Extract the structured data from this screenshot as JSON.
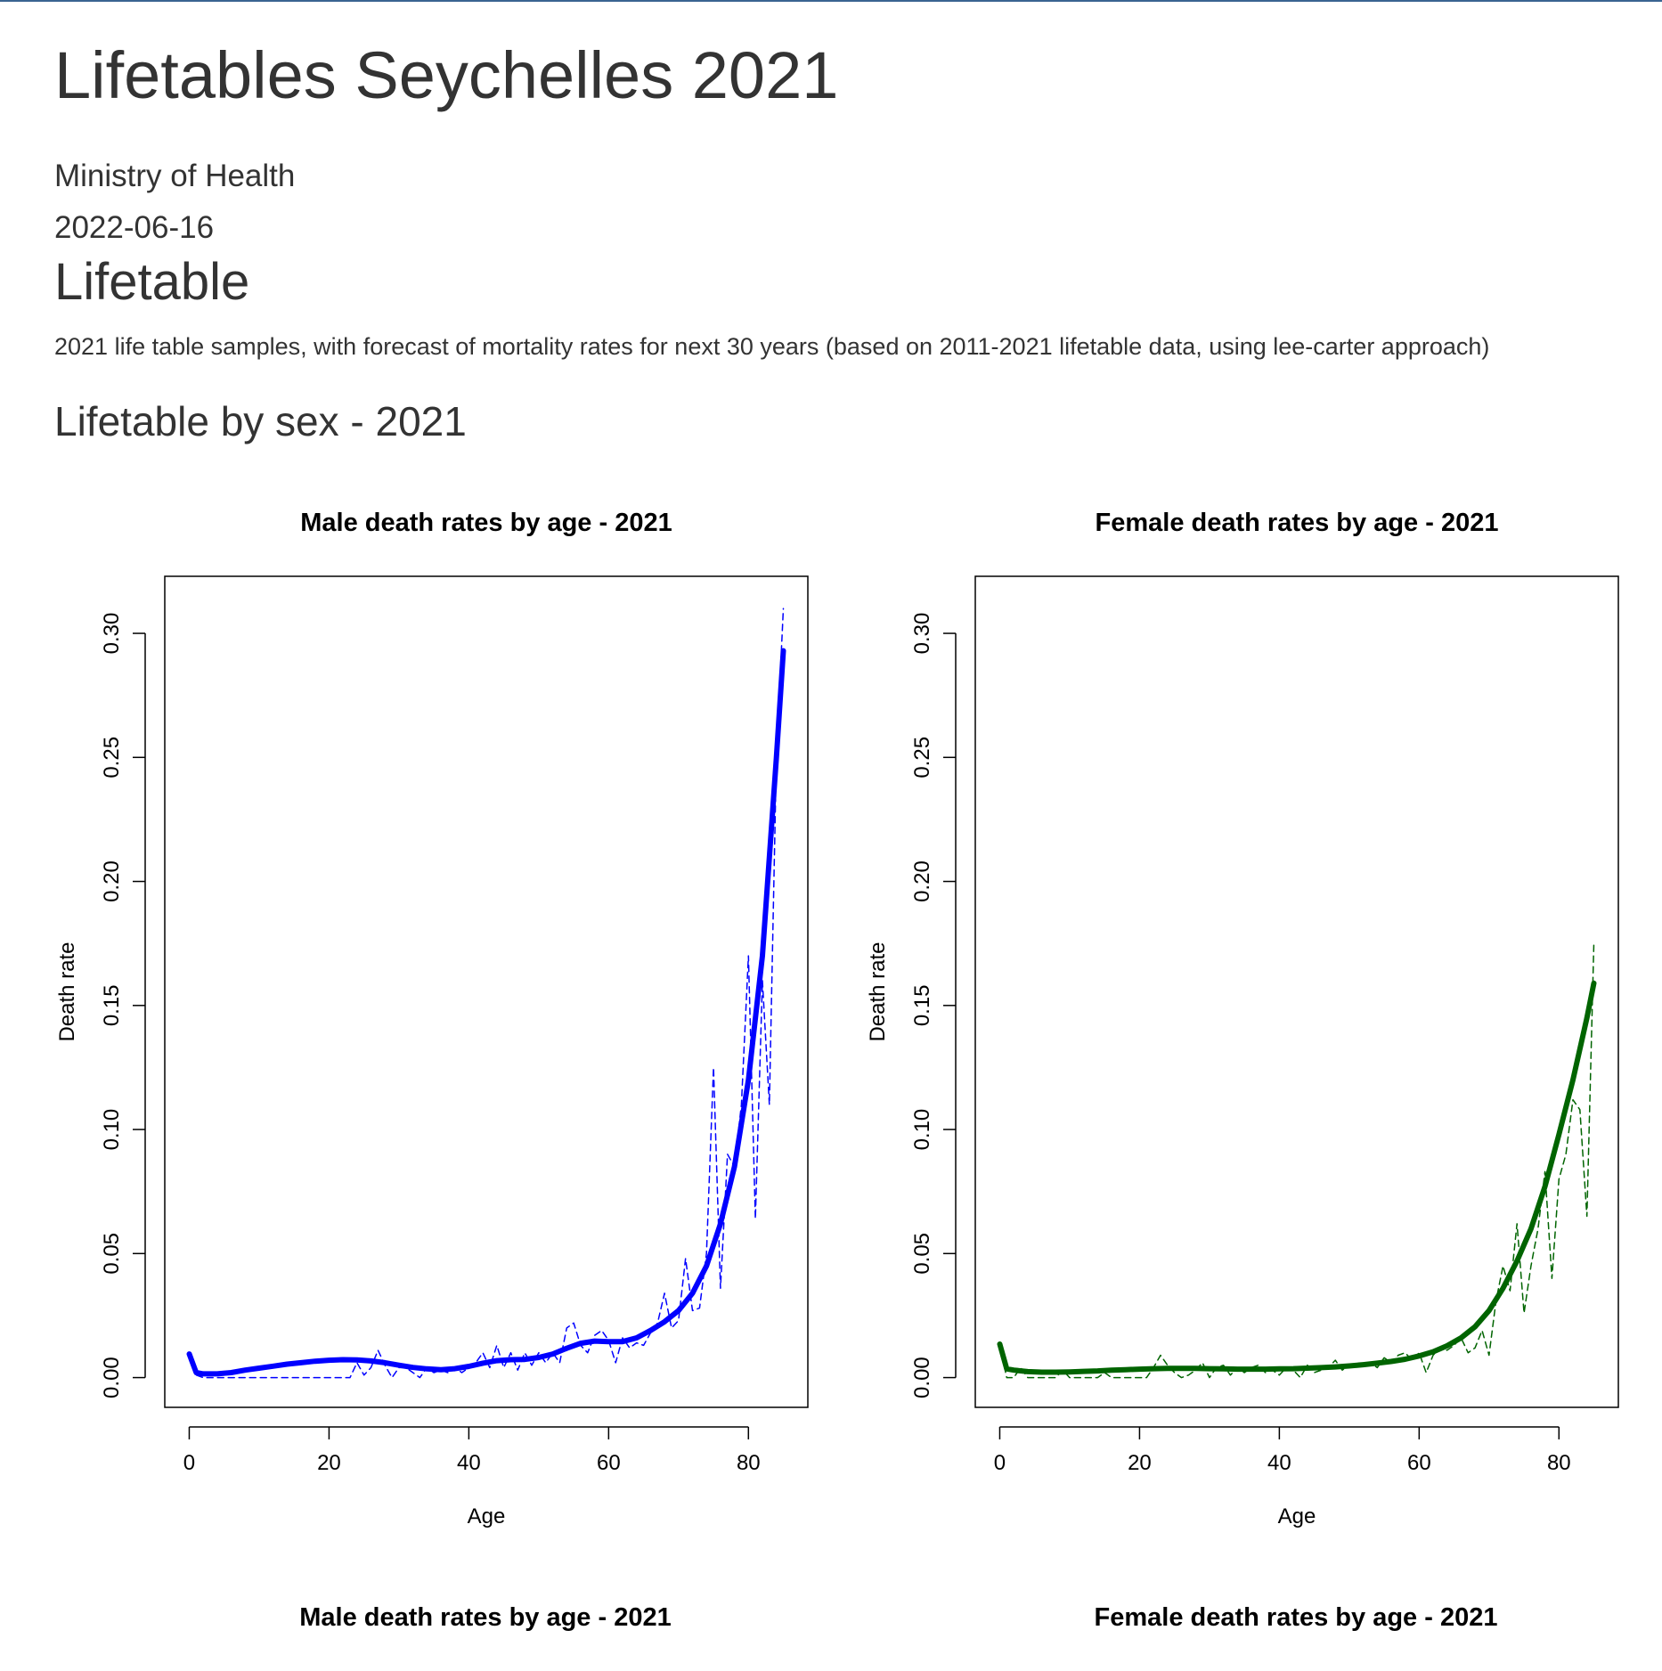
{
  "header": {
    "title": "Lifetables Seychelles 2021",
    "author": "Ministry of Health",
    "date": "2022-06-16"
  },
  "section": {
    "title": "Lifetable",
    "description": "2021 life table samples, with forecast of mortality rates for next 30 years (based on 2011-2021 lifetable data, using lee-carter approach)"
  },
  "subsection": {
    "title": "Lifetable by sex - 2021"
  },
  "colors": {
    "male": "#0000ff",
    "female": "#006400"
  },
  "second_row_titles": [
    "Male death rates by age - 2021",
    "Female death rates by age - 2021"
  ],
  "chart_data": [
    {
      "type": "line",
      "title": "Male death rates by age - 2021",
      "xlabel": "Age",
      "ylabel": "Death rate",
      "xlim": [
        -3.5,
        88.5
      ],
      "ylim": [
        -0.012,
        0.323
      ],
      "xticks": [
        "0",
        "20",
        "40",
        "60",
        "80"
      ],
      "yticks": [
        "0.00",
        "0.05",
        "0.10",
        "0.15",
        "0.20",
        "0.25",
        "0.30"
      ],
      "series": [
        {
          "style": "dashed",
          "x": [
            0,
            1,
            2,
            3,
            4,
            5,
            6,
            7,
            8,
            9,
            10,
            11,
            12,
            13,
            14,
            15,
            16,
            17,
            18,
            19,
            20,
            21,
            22,
            23,
            24,
            25,
            26,
            27,
            28,
            29,
            30,
            31,
            32,
            33,
            34,
            35,
            36,
            37,
            38,
            39,
            40,
            41,
            42,
            43,
            44,
            45,
            46,
            47,
            48,
            49,
            50,
            51,
            52,
            53,
            54,
            55,
            56,
            57,
            58,
            59,
            60,
            61,
            62,
            63,
            64,
            65,
            66,
            67,
            68,
            69,
            70,
            71,
            72,
            73,
            74,
            75,
            76,
            77,
            78,
            79,
            80,
            81,
            82,
            83,
            84,
            85
          ],
          "values": [
            0.009,
            0.001,
            0,
            0,
            0,
            0,
            0,
            0,
            0,
            0,
            0,
            0,
            0,
            0,
            0,
            0,
            0,
            0,
            0,
            0,
            0,
            0,
            0,
            0,
            0.006,
            0.001,
            0.004,
            0.011,
            0.005,
            0,
            0.004,
            0.004,
            0.002,
            0,
            0.004,
            0.002,
            0.003,
            0.002,
            0.004,
            0.002,
            0.004,
            0.006,
            0.01,
            0.004,
            0.013,
            0.004,
            0.01,
            0.003,
            0.01,
            0.005,
            0.01,
            0.006,
            0.01,
            0.006,
            0.02,
            0.022,
            0.013,
            0.01,
            0.017,
            0.019,
            0.015,
            0.006,
            0.016,
            0.012,
            0.014,
            0.013,
            0.018,
            0.022,
            0.034,
            0.02,
            0.023,
            0.048,
            0.027,
            0.028,
            0.05,
            0.125,
            0.036,
            0.09,
            0.085,
            0.11,
            0.17,
            0.064,
            0.16,
            0.11,
            0.25,
            0.31
          ]
        },
        {
          "style": "solid",
          "x": [
            0,
            1,
            2,
            4,
            6,
            8,
            10,
            12,
            14,
            16,
            18,
            20,
            22,
            24,
            26,
            28,
            30,
            32,
            34,
            36,
            38,
            40,
            42,
            44,
            46,
            48,
            50,
            52,
            54,
            56,
            58,
            60,
            62,
            64,
            66,
            68,
            70,
            72,
            74,
            76,
            78,
            80,
            82,
            84,
            85
          ],
          "values": [
            0.0095,
            0.002,
            0.0015,
            0.0015,
            0.002,
            0.003,
            0.0038,
            0.0046,
            0.0054,
            0.006,
            0.0066,
            0.007,
            0.0072,
            0.0071,
            0.0067,
            0.006,
            0.005,
            0.0041,
            0.0035,
            0.0032,
            0.0036,
            0.0045,
            0.0058,
            0.0068,
            0.0072,
            0.0073,
            0.0081,
            0.0095,
            0.0118,
            0.0138,
            0.0147,
            0.0145,
            0.0145,
            0.016,
            0.019,
            0.0225,
            0.027,
            0.034,
            0.045,
            0.062,
            0.085,
            0.12,
            0.17,
            0.25,
            0.293
          ]
        }
      ]
    },
    {
      "type": "line",
      "title": "Female death rates by age - 2021",
      "xlabel": "Age",
      "ylabel": "Death rate",
      "xlim": [
        -3.5,
        88.5
      ],
      "ylim": [
        -0.012,
        0.323
      ],
      "xticks": [
        "0",
        "20",
        "40",
        "60",
        "80"
      ],
      "yticks": [
        "0.00",
        "0.05",
        "0.10",
        "0.15",
        "0.20",
        "0.25",
        "0.30"
      ],
      "series": [
        {
          "style": "dashed",
          "x": [
            0,
            1,
            2,
            3,
            4,
            5,
            6,
            7,
            8,
            9,
            10,
            11,
            12,
            13,
            14,
            15,
            16,
            17,
            18,
            19,
            20,
            21,
            22,
            23,
            24,
            25,
            26,
            27,
            28,
            29,
            30,
            31,
            32,
            33,
            34,
            35,
            36,
            37,
            38,
            39,
            40,
            41,
            42,
            43,
            44,
            45,
            46,
            47,
            48,
            49,
            50,
            51,
            52,
            53,
            54,
            55,
            56,
            57,
            58,
            59,
            60,
            61,
            62,
            63,
            64,
            65,
            66,
            67,
            68,
            69,
            70,
            71,
            72,
            73,
            74,
            75,
            76,
            77,
            78,
            79,
            80,
            81,
            82,
            83,
            84,
            85
          ],
          "values": [
            0.013,
            0,
            0,
            0.004,
            0,
            0,
            0,
            0,
            0,
            0.003,
            0,
            0,
            0,
            0,
            0,
            0.002,
            0,
            0,
            0,
            0,
            0,
            0,
            0.004,
            0.009,
            0.005,
            0.002,
            0,
            0.001,
            0.003,
            0.006,
            0,
            0.004,
            0.005,
            0.001,
            0.004,
            0.002,
            0.004,
            0.005,
            0.002,
            0.003,
            0.001,
            0.004,
            0.003,
            0,
            0.005,
            0.002,
            0.003,
            0.004,
            0.007,
            0.003,
            0.005,
            0.004,
            0.006,
            0.006,
            0.004,
            0.008,
            0.006,
            0.009,
            0.01,
            0.007,
            0.01,
            0.002,
            0.009,
            0.012,
            0.011,
            0.013,
            0.016,
            0.01,
            0.012,
            0.019,
            0.009,
            0.031,
            0.045,
            0.035,
            0.062,
            0.026,
            0.045,
            0.06,
            0.083,
            0.04,
            0.08,
            0.09,
            0.112,
            0.108,
            0.065,
            0.175
          ]
        },
        {
          "style": "solid",
          "x": [
            0,
            1,
            2,
            4,
            6,
            8,
            10,
            12,
            14,
            16,
            18,
            20,
            22,
            24,
            26,
            28,
            30,
            32,
            34,
            36,
            38,
            40,
            42,
            44,
            46,
            48,
            50,
            52,
            54,
            56,
            58,
            60,
            62,
            64,
            66,
            68,
            70,
            72,
            74,
            76,
            78,
            80,
            82,
            84,
            85
          ],
          "values": [
            0.0135,
            0.0035,
            0.003,
            0.0024,
            0.0022,
            0.0022,
            0.0023,
            0.0025,
            0.0027,
            0.003,
            0.0032,
            0.0034,
            0.0036,
            0.0037,
            0.0037,
            0.0037,
            0.0036,
            0.0035,
            0.0034,
            0.0034,
            0.0034,
            0.0035,
            0.0036,
            0.0038,
            0.004,
            0.0043,
            0.0047,
            0.0052,
            0.0058,
            0.0065,
            0.0074,
            0.0087,
            0.0104,
            0.0128,
            0.016,
            0.0205,
            0.027,
            0.036,
            0.047,
            0.06,
            0.077,
            0.098,
            0.12,
            0.145,
            0.159
          ]
        }
      ]
    }
  ]
}
